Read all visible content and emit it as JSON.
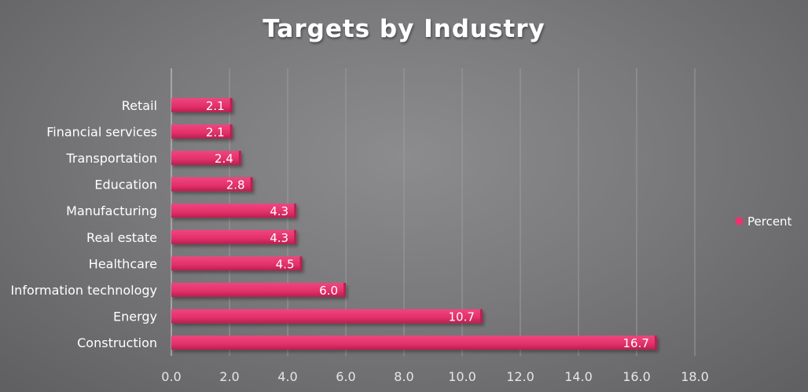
{
  "chart_data": {
    "type": "bar",
    "orientation": "horizontal",
    "title": "Targets by Industry",
    "categories": [
      "Retail",
      "Financial services",
      "Transportation",
      "Education",
      "Manufacturing",
      "Real estate",
      "Healthcare",
      "Information technology",
      "Energy",
      "Construction"
    ],
    "series": [
      {
        "name": "Percent",
        "values": [
          2.1,
          2.1,
          2.4,
          2.8,
          4.3,
          4.3,
          4.5,
          6.0,
          10.7,
          16.7
        ]
      }
    ],
    "value_labels": [
      "2.1",
      "2.1",
      "2.4",
      "2.8",
      "4.3",
      "4.3",
      "4.5",
      "6.0",
      "10.7",
      "16.7"
    ],
    "xlim": [
      0,
      18
    ],
    "ticks": [
      "0.0",
      "2.0",
      "4.0",
      "6.0",
      "8.0",
      "10.0",
      "12.0",
      "14.0",
      "16.0",
      "18.0"
    ],
    "grid": true,
    "legend": "right",
    "colors": {
      "bar": "#e8336e",
      "bar_dark": "#b8204f",
      "text": "#ffffff"
    }
  }
}
